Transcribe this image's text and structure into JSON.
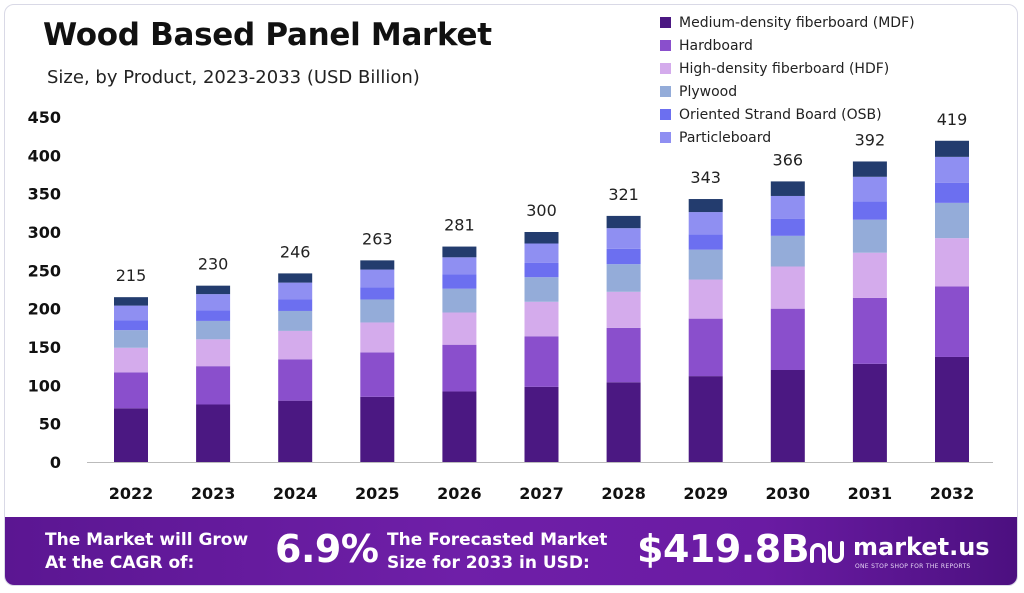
{
  "header": {
    "title": "Wood Based Panel Market",
    "subtitle": "Size, by Product, 2023-2033 (USD Billion)"
  },
  "chart_data": {
    "type": "bar",
    "stacked": true,
    "categories": [
      "2022",
      "2023",
      "2024",
      "2025",
      "2026",
      "2027",
      "2028",
      "2029",
      "2030",
      "2031",
      "2032"
    ],
    "totals": [
      215,
      230,
      246,
      263,
      281,
      300,
      321,
      343,
      366,
      392,
      419
    ],
    "ylim": [
      0,
      450
    ],
    "yticks": [
      0,
      50,
      100,
      150,
      200,
      250,
      300,
      350,
      400,
      450
    ],
    "grid": false,
    "legend_position": "top-right",
    "series": [
      {
        "name": "Medium-density fiberboard (MDF)",
        "color": "#4b1882",
        "values": [
          70,
          75,
          80,
          85,
          92,
          98,
          104,
          112,
          120,
          128,
          137
        ]
      },
      {
        "name": "Hardboard",
        "color": "#8a4fcc",
        "values": [
          47,
          50,
          54,
          58,
          61,
          66,
          71,
          75,
          80,
          86,
          92
        ]
      },
      {
        "name": "High-density fiberboard (HDF)",
        "color": "#d4abec",
        "values": [
          32,
          35,
          37,
          39,
          42,
          45,
          47,
          51,
          55,
          59,
          63
        ]
      },
      {
        "name": "Plywood",
        "color": "#94acd9",
        "values": [
          23,
          24,
          26,
          30,
          31,
          32,
          36,
          39,
          40,
          43,
          46
        ]
      },
      {
        "name": "Oriented Strand Board (OSB)",
        "color": "#6c6ff0",
        "values": [
          13,
          14,
          15,
          16,
          19,
          19,
          20,
          20,
          22,
          24,
          26
        ]
      },
      {
        "name": "Particleboard",
        "color": "#8f8ff2",
        "values": [
          19,
          21,
          22,
          23,
          22,
          25,
          27,
          29,
          30,
          32,
          34
        ]
      },
      {
        "name": "",
        "color": "#233c6e",
        "values": [
          11,
          11,
          12,
          12,
          14,
          15,
          16,
          17,
          19,
          20,
          21
        ]
      }
    ]
  },
  "footer": {
    "cagr_label_line1": "The Market will Grow",
    "cagr_label_line2": "At the CAGR of:",
    "cagr_value": "6.9%",
    "forecast_label_line1": "The Forecasted Market",
    "forecast_label_line2": "Size for 2033 in USD:",
    "forecast_value": "$419.8B",
    "brand_name": "market.us",
    "brand_tagline": "ONE STOP SHOP FOR THE REPORTS"
  },
  "colors": {
    "footer_purple": "#6a1ba3",
    "text_dark": "#111111"
  }
}
